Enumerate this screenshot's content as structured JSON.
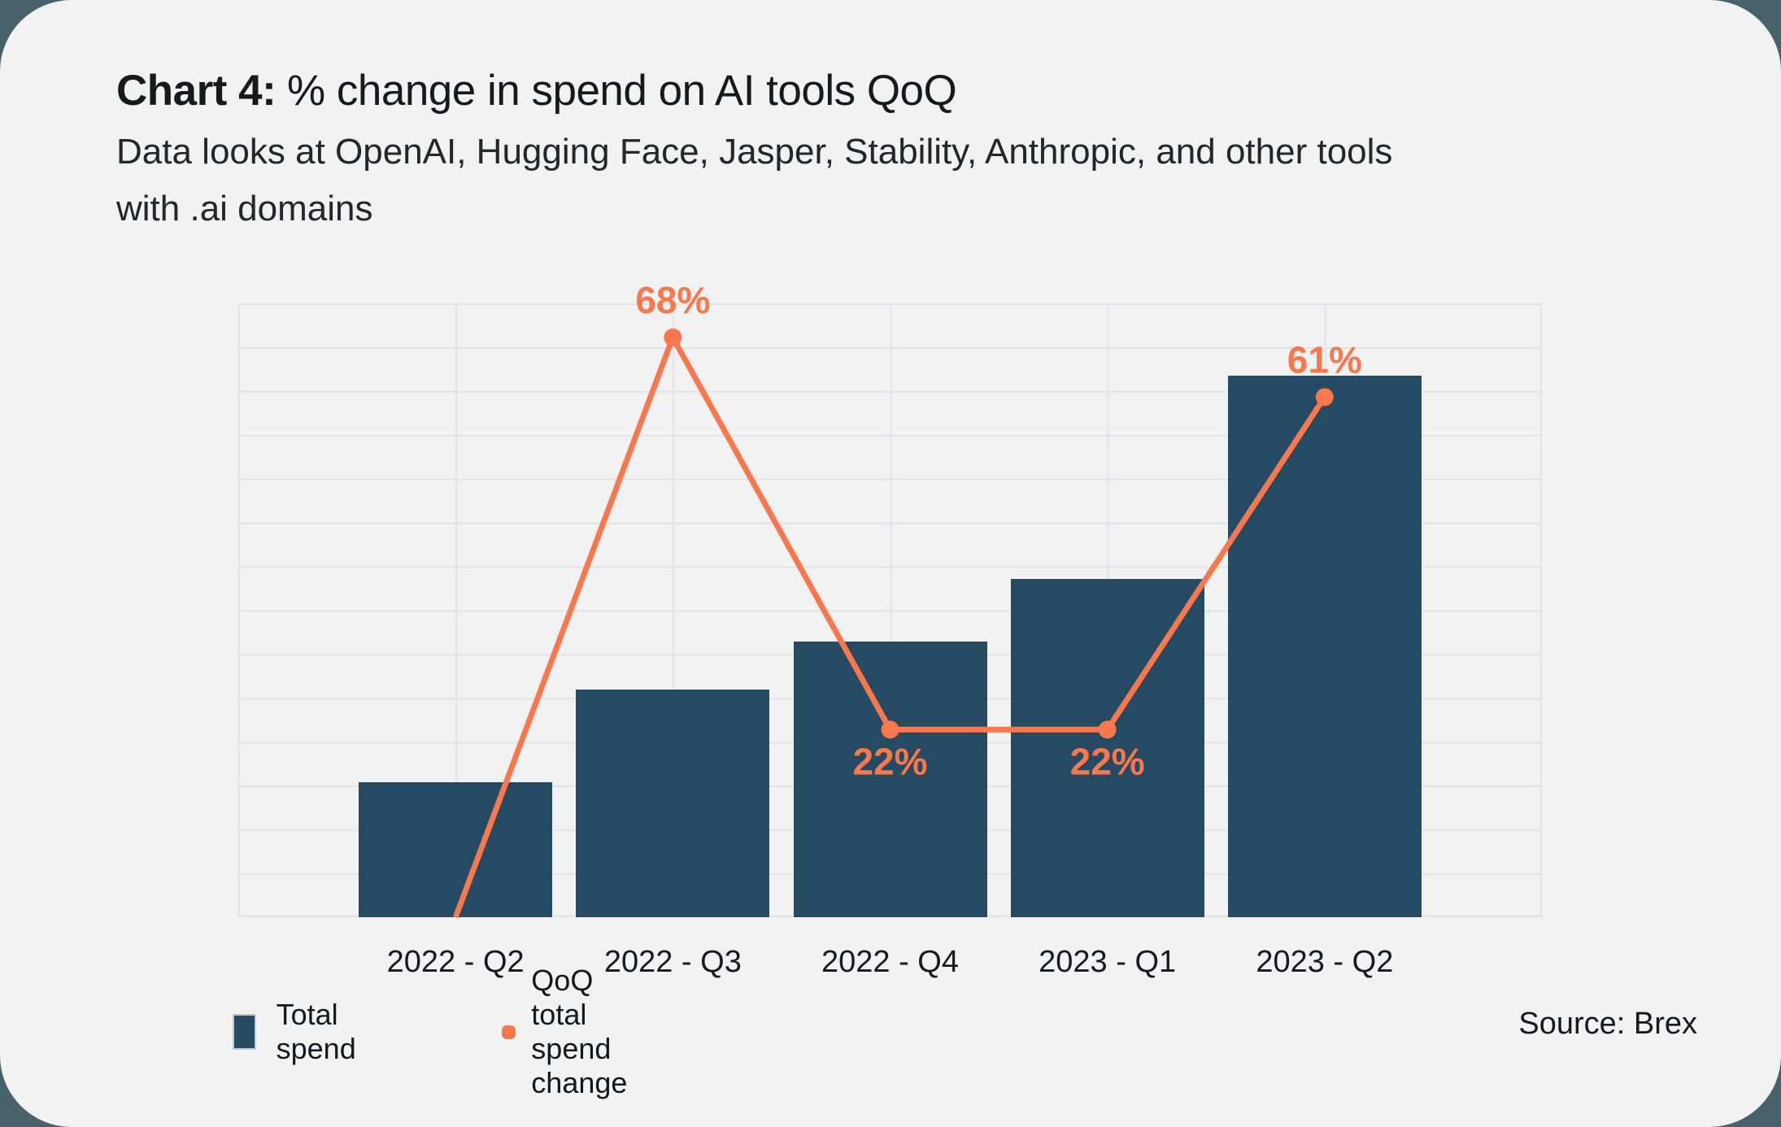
{
  "header": {
    "title_prefix": "Chart 4:",
    "title_rest": "% change in spend on AI tools QoQ",
    "subtitle_lines": [
      "Data looks at OpenAI, Hugging Face, Jasper, Stability, Anthropic, and other tools",
      "with .ai domains"
    ]
  },
  "legend": {
    "items": [
      {
        "label": "Total spend",
        "swatch": "square"
      },
      {
        "label": "QoQ total spend change",
        "swatch": "dash"
      }
    ]
  },
  "source": "Source: Brex",
  "colors": {
    "outer_bg": "#48626c",
    "card_bg": "#f2f2f3",
    "bar": "#274a63",
    "line": "#f7784c",
    "gridline": "#e2e3e6",
    "text": "#17191c"
  },
  "chart_data": {
    "type": "bar+line",
    "categories": [
      "2022 - Q2",
      "2022 - Q3",
      "2022 - Q4",
      "2023 - Q1",
      "2023 - Q2"
    ],
    "series": [
      {
        "name": "Total spend",
        "type": "bar",
        "values_indexed_estimate": [
          100,
          169,
          205,
          251,
          402
        ],
        "axis_max_indexed": 456,
        "value_labels_shown": false
      },
      {
        "name": "QoQ total spend change",
        "type": "line",
        "values_pct": [
          0,
          68,
          22,
          22,
          61
        ],
        "point_labels": [
          "",
          "68%",
          "22%",
          "22%",
          "61%"
        ],
        "label_positions": [
          "none",
          "above",
          "below",
          "below",
          "above"
        ],
        "markers": [
          false,
          true,
          true,
          true,
          true
        ],
        "axis_max_pct": 72
      }
    ],
    "grid": {
      "rows": 14,
      "cols": 6,
      "y_tick_labels": "none",
      "x_tick_labels": "bottom"
    },
    "legend_position": "bottom-left"
  }
}
